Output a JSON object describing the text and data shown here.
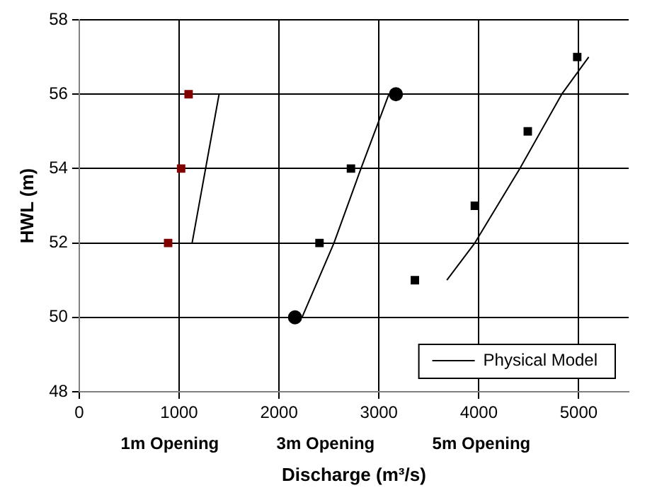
{
  "chart_data": {
    "type": "scatter",
    "xlabel": "Discharge (m³/s)",
    "ylabel": "HWL (m)",
    "xlim": [
      0,
      5500
    ],
    "xticks": [
      0,
      1000,
      2000,
      3000,
      4000,
      5000
    ],
    "ylim": [
      48,
      58
    ],
    "yticks": [
      48,
      50,
      52,
      54,
      56,
      58
    ],
    "grid": true,
    "legend": "bottom right",
    "annotations": [
      "1m Opening",
      "3m Opening",
      "5m Opening"
    ],
    "series": [
      {
        "name": "Physical Model",
        "type": "line",
        "marker": "none",
        "color": "#000000",
        "x": [
          1130,
          1400
        ],
        "values": [
          52,
          56
        ]
      },
      {
        "type": "line",
        "marker": "none",
        "color": "#000000",
        "x": [
          2230,
          2550,
          2820,
          3100
        ],
        "values": [
          50,
          52,
          54,
          56
        ]
      },
      {
        "type": "line",
        "marker": "none",
        "color": "#000000",
        "x": [
          3680,
          3960,
          4410,
          4830,
          5100
        ],
        "values": [
          51,
          52,
          54,
          56,
          57
        ]
      },
      {
        "type": "scatter",
        "marker": "square",
        "colors": [
          "#800000",
          "#800000",
          "#800000",
          "#000000",
          "#000000",
          "#000000",
          "#000000",
          "#000000",
          "#000000"
        ],
        "x": [
          890,
          1020,
          1095,
          2405,
          2720,
          3360,
          3960,
          4490,
          4985
        ],
        "values": [
          52,
          54,
          56,
          52,
          54,
          51,
          53,
          55,
          57
        ]
      },
      {
        "type": "scatter",
        "marker": "circle",
        "color": "#000000",
        "x": [
          2160,
          3170
        ],
        "values": [
          50,
          56
        ]
      }
    ]
  }
}
